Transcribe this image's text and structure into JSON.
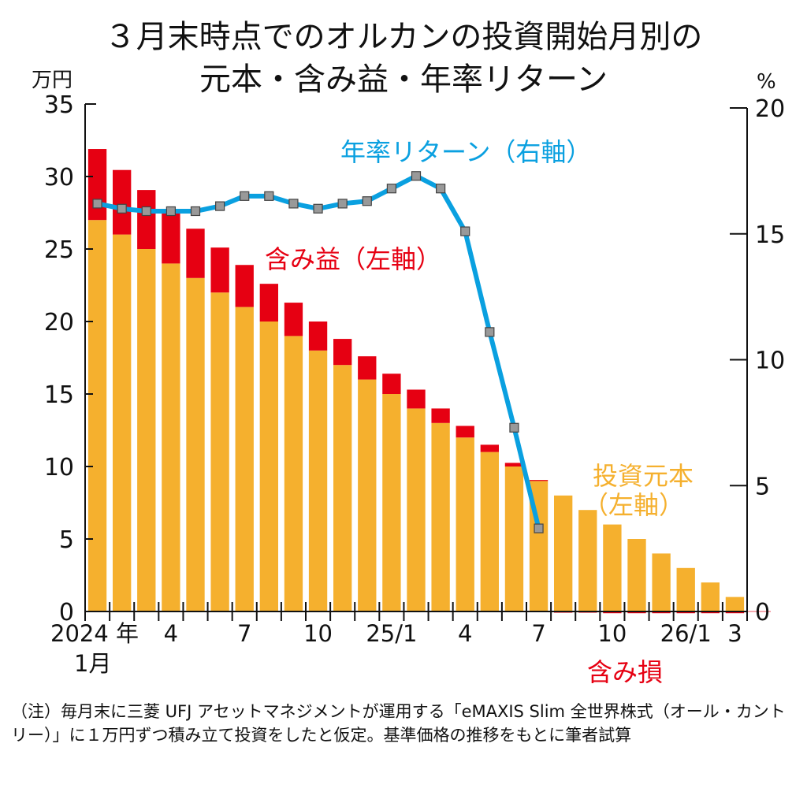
{
  "chart_data": {
    "type": "bar",
    "title": "３月末時点でのオルカンの投資開始月別の\n元本・含み益・年率リターン",
    "title_lines": [
      "３月末時点でのオルカンの投資開始月別の",
      "元本・含み益・年率リターン"
    ],
    "left_axis": {
      "unit_label": "万円",
      "ylim": [
        0,
        35
      ],
      "ticks": [
        0,
        5,
        10,
        15,
        20,
        25,
        30,
        35
      ]
    },
    "right_axis": {
      "unit_label": "%",
      "ylim": [
        0,
        20
      ],
      "ticks": [
        0,
        5,
        10,
        15,
        20
      ]
    },
    "categories": [
      "2024/1",
      "2024/2",
      "2024/3",
      "2024/4",
      "2024/5",
      "2024/6",
      "2024/7",
      "2024/8",
      "2024/9",
      "2024/10",
      "2024/11",
      "2024/12",
      "2025/1",
      "2025/2",
      "2025/3",
      "2025/4",
      "2025/5",
      "2025/6",
      "2025/7",
      "2025/8",
      "2025/9",
      "2025/10",
      "2025/11",
      "2025/12",
      "2026/1",
      "2026/2",
      "2026/3"
    ],
    "x_tick_labels": [
      {
        "index": 0,
        "label": "2024 年",
        "sub": "1月"
      },
      {
        "index": 3,
        "label": "4"
      },
      {
        "index": 6,
        "label": "7"
      },
      {
        "index": 9,
        "label": "10"
      },
      {
        "index": 12,
        "label": "25/1"
      },
      {
        "index": 15,
        "label": "4"
      },
      {
        "index": 18,
        "label": "7"
      },
      {
        "index": 21,
        "label": "10"
      },
      {
        "index": 24,
        "label": "26/1"
      },
      {
        "index": 26,
        "label": "3"
      }
    ],
    "series": [
      {
        "name": "投資元本（左軸）",
        "type": "bar",
        "axis": "left",
        "color": "#f5b02e",
        "values": [
          27,
          26,
          25,
          24,
          23,
          22,
          21,
          20,
          19,
          18,
          17,
          16,
          15,
          14,
          13,
          12,
          11,
          10,
          9,
          8,
          7,
          6,
          5,
          4,
          3,
          2,
          1
        ]
      },
      {
        "name": "含み益（左軸）",
        "type": "bar-stacked",
        "axis": "left",
        "color": "#e60012",
        "values": [
          4.9,
          4.45,
          4.07,
          3.6,
          3.4,
          3.1,
          2.9,
          2.6,
          2.3,
          2.0,
          1.8,
          1.6,
          1.4,
          1.3,
          1.0,
          0.8,
          0.5,
          0.25,
          0.07,
          -0.03,
          -0.03,
          -0.12,
          -0.12,
          -0.12,
          -0.12,
          -0.12,
          -0.12
        ]
      },
      {
        "name": "年率リターン（右軸）",
        "type": "line",
        "axis": "right",
        "color": "#0aa0e0",
        "marker_color": "#999999",
        "values": [
          16.2,
          16.0,
          15.9,
          15.9,
          15.9,
          16.1,
          16.5,
          16.5,
          16.2,
          16.0,
          16.2,
          16.3,
          16.8,
          17.3,
          16.8,
          15.1,
          11.1,
          7.3,
          3.3,
          null,
          null,
          null,
          null,
          null,
          null,
          null,
          null
        ]
      }
    ],
    "annotations": {
      "return_label": "年率リターン（右軸）",
      "gain_label": "含み益（左軸）",
      "principal_label_line1": "投資元本",
      "principal_label_line2": "（左軸）",
      "loss_label": "含み損"
    },
    "grid": false
  },
  "note": "（注）毎月末に三菱 UFJ アセットマネジメントが運用する「eMAXIS Slim 全世界株式（オール・カントリー）」に１万円ずつ積み立て投資をしたと仮定。基準価格の推移をもとに筆者試算"
}
